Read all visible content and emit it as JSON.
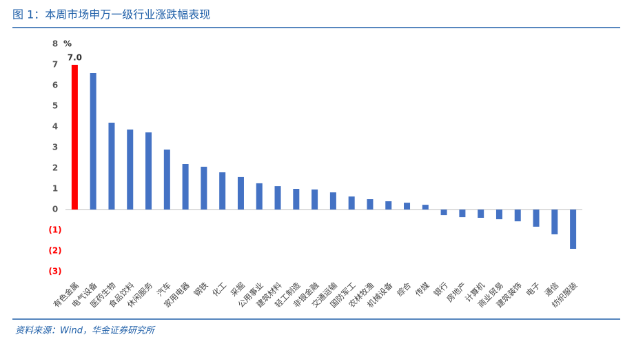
{
  "header": {
    "title": "图 1：本周市场申万一级行业涨跌幅表现"
  },
  "chart_data": {
    "type": "bar",
    "unit_label": "%",
    "categories": [
      "有色金属",
      "电气设备",
      "医药生物",
      "食品饮料",
      "休闲服务",
      "汽车",
      "家用电器",
      "钢铁",
      "化工",
      "采掘",
      "公用事业",
      "建筑材料",
      "轻工制造",
      "非银金融",
      "交通运输",
      "国防军工",
      "农林牧渔",
      "机械设备",
      "综合",
      "传媒",
      "银行",
      "房地产",
      "计算机",
      "商业贸易",
      "建筑装饰",
      "电子",
      "通信",
      "纺织服装"
    ],
    "values": [
      7,
      6.6,
      4.2,
      3.87,
      3.73,
      2.9,
      2.2,
      2.07,
      1.8,
      1.57,
      1.27,
      1.13,
      1.0,
      0.97,
      0.83,
      0.63,
      0.5,
      0.4,
      0.33,
      0.23,
      -0.27,
      -0.37,
      -0.4,
      -0.47,
      -0.57,
      -0.83,
      -1.2,
      -1.9
    ],
    "value_labels": [
      "7.0",
      null,
      null,
      null,
      null,
      null,
      null,
      null,
      null,
      null,
      null,
      null,
      null,
      null,
      null,
      null,
      null,
      null,
      null,
      null,
      null,
      null,
      null,
      null,
      null,
      null,
      null,
      null
    ],
    "colors": [
      "#ff0000",
      "#4472c4",
      "#4472c4",
      "#4472c4",
      "#4472c4",
      "#4472c4",
      "#4472c4",
      "#4472c4",
      "#4472c4",
      "#4472c4",
      "#4472c4",
      "#4472c4",
      "#4472c4",
      "#4472c4",
      "#4472c4",
      "#4472c4",
      "#4472c4",
      "#4472c4",
      "#4472c4",
      "#4472c4",
      "#4472c4",
      "#4472c4",
      "#4472c4",
      "#4472c4",
      "#4472c4",
      "#4472c4",
      "#4472c4",
      "#4472c4"
    ],
    "ylim": [
      -3,
      8
    ],
    "yticks": [
      {
        "value": -3,
        "label": "(3)"
      },
      {
        "value": -2,
        "label": "(2)"
      },
      {
        "value": -1,
        "label": "(1)"
      },
      0,
      1,
      2,
      3,
      4,
      5,
      6,
      7,
      8
    ],
    "negative_tick_color": "#ff0000",
    "grid": false
  },
  "footer": {
    "source": "资料来源：Wind，华金证券研究所"
  }
}
